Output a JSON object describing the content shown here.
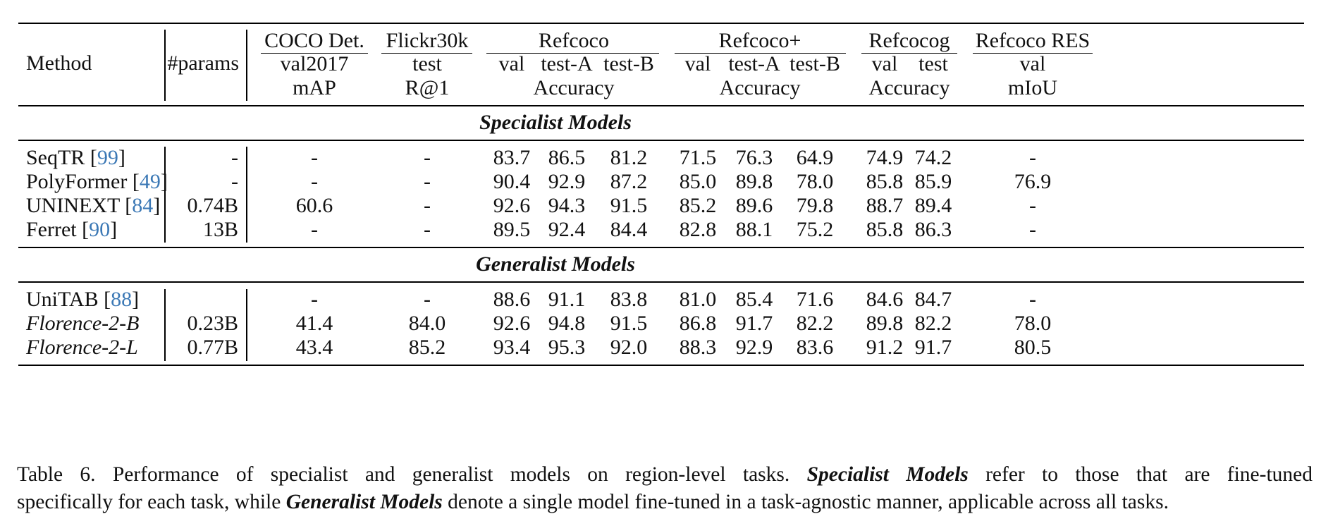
{
  "table": {
    "header": {
      "method": "Method",
      "params": "#params",
      "groups": [
        {
          "name": "COCO Det.",
          "split": "val2017",
          "metric": "mAP"
        },
        {
          "name": "Flickr30k",
          "split": "test",
          "metric": "R@1"
        },
        {
          "name": "Refcoco",
          "splits": [
            "val",
            "test-A",
            "test-B"
          ],
          "metric": "Accuracy"
        },
        {
          "name": "Refcoco+",
          "splits": [
            "val",
            "test-A",
            "test-B"
          ],
          "metric": "Accuracy"
        },
        {
          "name": "Refcocog",
          "splits": [
            "val",
            "test"
          ],
          "metric": "Accuracy"
        },
        {
          "name": "Refcoco RES",
          "split": "val",
          "metric": "mIoU"
        }
      ]
    },
    "sections": [
      {
        "title": "Specialist Models",
        "rows": [
          {
            "method": "SeqTR",
            "cite": "99",
            "params": "-",
            "values": [
              "-",
              "-",
              "83.7",
              "86.5",
              "81.2",
              "71.5",
              "76.3",
              "64.9",
              "74.9",
              "74.2",
              "-"
            ]
          },
          {
            "method": "PolyFormer",
            "cite": "49",
            "params": "-",
            "values": [
              "-",
              "-",
              "90.4",
              "92.9",
              "87.2",
              "85.0",
              "89.8",
              "78.0",
              "85.8",
              "85.9",
              "76.9"
            ]
          },
          {
            "method": "UNINEXT",
            "cite": "84",
            "params": "0.74B",
            "values": [
              "60.6",
              "-",
              "92.6",
              "94.3",
              "91.5",
              "85.2",
              "89.6",
              "79.8",
              "88.7",
              "89.4",
              "-"
            ]
          },
          {
            "method": "Ferret",
            "cite": "90",
            "params": "13B",
            "values": [
              "-",
              "-",
              "89.5",
              "92.4",
              "84.4",
              "82.8",
              "88.1",
              "75.2",
              "85.8",
              "86.3",
              "-"
            ]
          }
        ]
      },
      {
        "title": "Generalist Models",
        "rows": [
          {
            "method": "UniTAB",
            "cite": "88",
            "params": "",
            "values": [
              "-",
              "-",
              "88.6",
              "91.1",
              "83.8",
              "81.0",
              "85.4",
              "71.6",
              "84.6",
              "84.7",
              "-"
            ]
          },
          {
            "method": "Florence-2-B",
            "italic": true,
            "params": "0.23B",
            "values": [
              "41.4",
              "84.0",
              "92.6",
              "94.8",
              "91.5",
              "86.8",
              "91.7",
              "82.2",
              "89.8",
              "82.2",
              "78.0"
            ]
          },
          {
            "method": "Florence-2-L",
            "italic": true,
            "params": "0.77B",
            "values": [
              "43.4",
              "85.2",
              "93.4",
              "95.3",
              "92.0",
              "88.3",
              "92.9",
              "83.6",
              "91.2",
              "91.7",
              "80.5"
            ]
          }
        ]
      }
    ]
  },
  "caption": {
    "lines": [
      [
        {
          "text": "Table 6.  Performance of specialist and generalist models on region-level tasks.  "
        },
        {
          "text": "Specialist Models",
          "style": "bold-italic"
        },
        {
          "text": " refer to those that are fine-tuned"
        }
      ],
      [
        {
          "text": "specifically for each task, while "
        },
        {
          "text": "Generalist Models",
          "style": "bold-italic"
        },
        {
          "text": " denote a single model fine-tuned in a task-agnostic manner, applicable across all tasks."
        }
      ]
    ]
  }
}
